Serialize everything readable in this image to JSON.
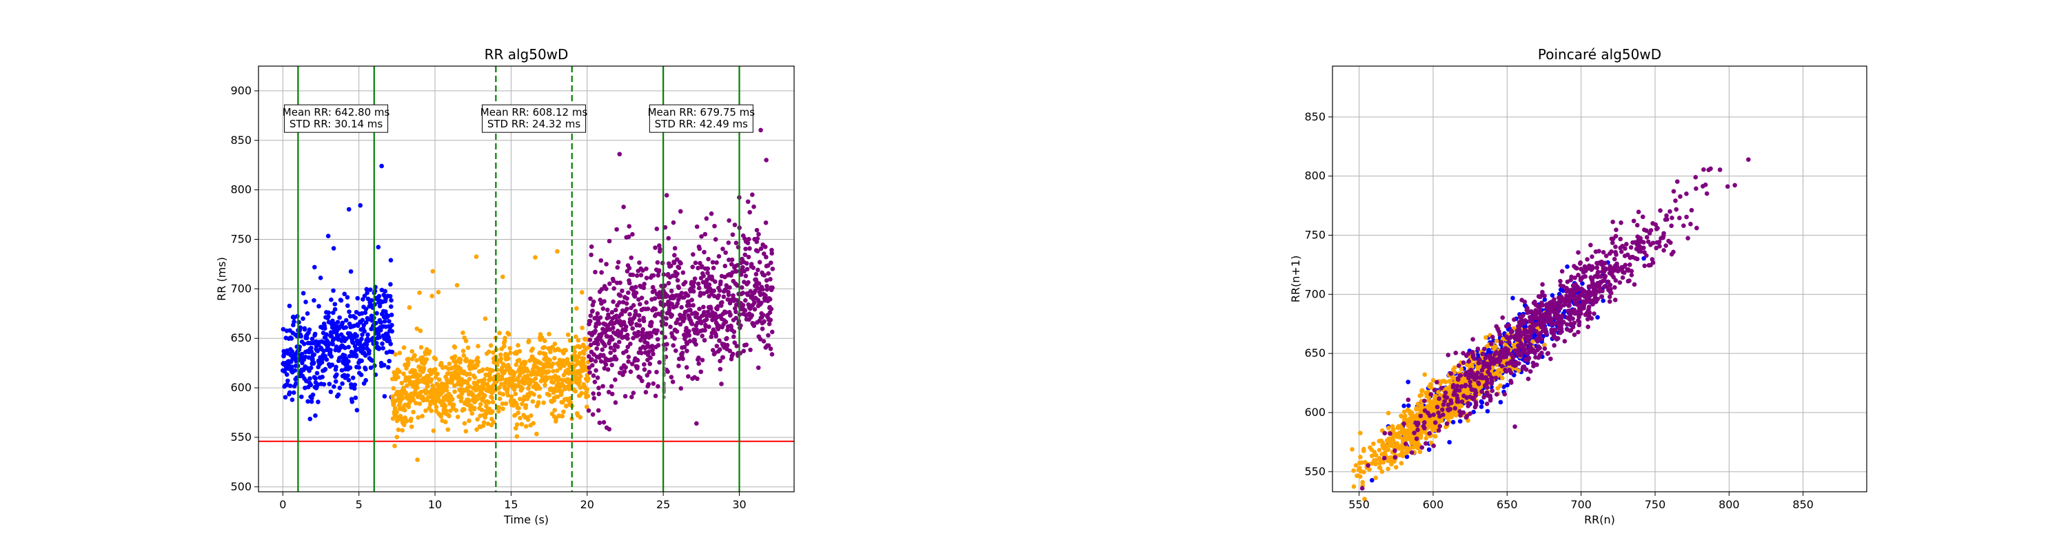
{
  "chart_data": [
    {
      "type": "scatter",
      "title": "RR alg50wD",
      "xlabel": "Time (s)",
      "ylabel": "RR (ms)",
      "xlim": [
        -1.6,
        33.6
      ],
      "ylim": [
        495,
        925
      ],
      "xticks": [
        0,
        5,
        10,
        15,
        20,
        25,
        30
      ],
      "yticks": [
        500,
        550,
        600,
        650,
        700,
        750,
        800,
        850,
        900
      ],
      "grid": true,
      "colors": {
        "seg1": "#0000ff",
        "seg2": "#ffa500",
        "seg3": "#800080",
        "vline": "#008000",
        "hline": "#ff0000",
        "gray_mark": "#808080"
      },
      "horizontal_line": 546,
      "vertical_lines": [
        {
          "x": 1,
          "style": "solid"
        },
        {
          "x": 6,
          "style": "solid"
        },
        {
          "x": 14,
          "style": "dashed"
        },
        {
          "x": 19,
          "style": "dashed"
        },
        {
          "x": 25,
          "style": "solid"
        },
        {
          "x": 30,
          "style": "solid"
        }
      ],
      "annotations": [
        {
          "x": 3.5,
          "y": 872,
          "lines": [
            "Mean RR: 642.80 ms",
            "STD RR: 30.14 ms"
          ]
        },
        {
          "x": 16.5,
          "y": 872,
          "lines": [
            "Mean RR: 608.12 ms",
            "STD RR: 24.32 ms"
          ]
        },
        {
          "x": 27.5,
          "y": 872,
          "lines": [
            "Mean RR: 679.75 ms",
            "STD RR: 42.49 ms"
          ]
        }
      ],
      "series": [
        {
          "color": "seg1",
          "x_range": [
            0,
            7.2
          ],
          "mean": 642.8,
          "std": 30.14,
          "trend": [
            625,
            660
          ],
          "count": 560
        },
        {
          "color": "seg2",
          "x_range": [
            7.2,
            20.1
          ],
          "mean": 608.12,
          "std": 24.32,
          "trend": [
            595,
            615
          ],
          "count": 1050
        },
        {
          "color": "seg3",
          "x_range": [
            20.1,
            32.2
          ],
          "mean": 679.75,
          "std": 42.49,
          "trend": [
            650,
            700
          ],
          "count": 960
        }
      ]
    },
    {
      "type": "scatter",
      "title": "Poincaré alg50wD",
      "xlabel": "RR(n)",
      "ylabel": "RR(n+1)",
      "xlim": [
        532,
        893
      ],
      "ylim": [
        533,
        893
      ],
      "xticks": [
        550,
        600,
        650,
        700,
        750,
        800,
        850
      ],
      "yticks": [
        550,
        600,
        650,
        700,
        750,
        800,
        850
      ],
      "grid": true,
      "series": [
        {
          "color": "seg1",
          "center": 642.8,
          "spread": 30.14,
          "scatter": 12,
          "count": 520
        },
        {
          "color": "seg2",
          "center": 608.12,
          "spread": 24.32,
          "scatter": 10,
          "count": 1000
        },
        {
          "color": "seg3",
          "center": 679.75,
          "spread": 42.49,
          "scatter": 14,
          "count": 900
        }
      ]
    }
  ]
}
